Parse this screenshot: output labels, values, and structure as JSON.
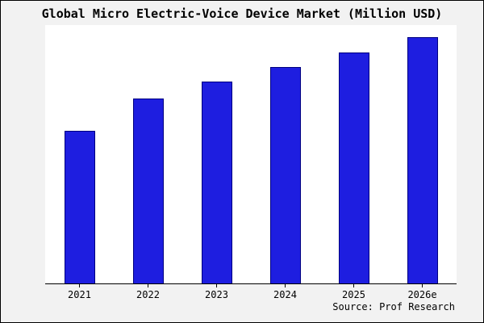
{
  "title": "Global Micro Electric-Voice Device Market (Million USD)",
  "source": "Source: Prof Research",
  "colors": {
    "bar": "#1e1ee0",
    "bar_border": "#000080",
    "background": "#f2f2f2",
    "plot_background": "#ffffff",
    "axis": "#000000"
  },
  "chart_data": {
    "type": "bar",
    "title": "Global Micro Electric-Voice Device Market (Million USD)",
    "categories": [
      "2021",
      "2022",
      "2023",
      "2024",
      "2025",
      "2026e"
    ],
    "values": [
      62,
      75,
      82,
      88,
      94,
      100
    ],
    "xlabel": "",
    "ylabel": "",
    "ylim": [
      0,
      105
    ],
    "y_axis_labels_visible": false,
    "grid": false,
    "legend_position": "none",
    "annotation": "Source: Prof Research"
  }
}
